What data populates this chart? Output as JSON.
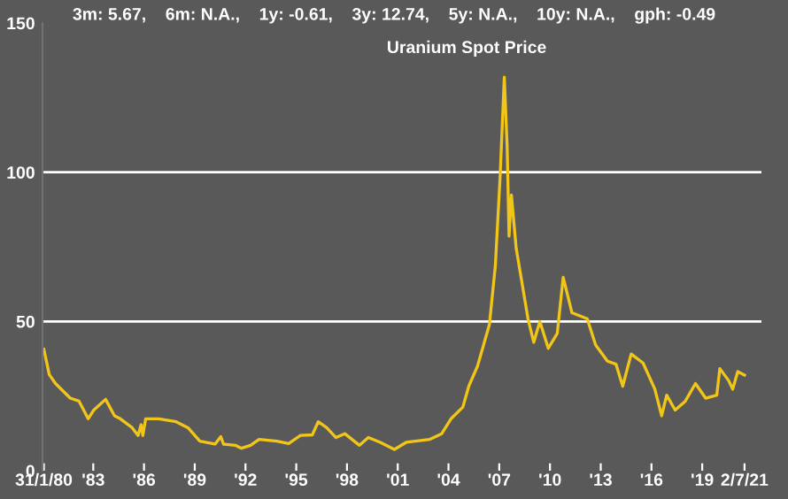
{
  "chart_data": {
    "type": "line",
    "title": "Uranium Spot Price",
    "subtitle": "3m: 5.67,    6m: N.A.,    1y: -0.61,    3y: 12.74,    5y: N.A.,    10y: N.A.,    gph: -0.49",
    "series": [
      {
        "color": "#f2c618",
        "x": [
          1980.08,
          1980.4,
          1980.77,
          1981.64,
          1982.16,
          1982.7,
          1983.03,
          1983.73,
          1984.26,
          1984.6,
          1985.3,
          1985.65,
          1985.83,
          1985.93,
          1986.1,
          1986.87,
          1987.9,
          1988.6,
          1989.3,
          1990.2,
          1990.54,
          1990.7,
          1991.4,
          1991.76,
          1992.3,
          1992.8,
          1993.86,
          1994.55,
          1995.25,
          1995.95,
          1996.3,
          1996.8,
          1997.35,
          1997.87,
          1998.74,
          1999.26,
          1999.97,
          2000.8,
          2001.5,
          2002.9,
          2003.6,
          2004.15,
          2004.85,
          2005.2,
          2005.72,
          2006.42,
          2006.77,
          2007.05,
          2007.3,
          2007.47,
          2007.58,
          2007.72,
          2008.0,
          2008.35,
          2008.7,
          2009.04,
          2009.4,
          2009.9,
          2010.43,
          2010.78,
          2011.3,
          2012.2,
          2012.7,
          2013.4,
          2013.9,
          2014.3,
          2014.8,
          2015.5,
          2016.2,
          2016.6,
          2016.9,
          2017.4,
          2018.0,
          2018.6,
          2019.2,
          2019.86,
          2020.04,
          2020.56,
          2020.8,
          2021.1,
          2021.5
        ],
        "values": [
          40.7,
          32.2,
          29.2,
          24.3,
          23.3,
          17.4,
          20.3,
          23.9,
          18.4,
          17.4,
          14.4,
          11.8,
          15.4,
          11.8,
          17.4,
          17.4,
          16.4,
          14.4,
          9.9,
          8.9,
          11.4,
          8.9,
          8.5,
          7.5,
          8.5,
          10.5,
          9.9,
          9.1,
          11.8,
          12,
          16.4,
          14.4,
          11.1,
          12.4,
          8.5,
          11.1,
          9.5,
          7.1,
          9.5,
          10.5,
          12.4,
          17.4,
          21.3,
          28.3,
          35.1,
          49,
          68.7,
          98.3,
          131.9,
          108.2,
          78.6,
          92.4,
          74.6,
          62.8,
          50.9,
          43,
          50,
          41,
          46,
          64.8,
          52.9,
          50.9,
          42.1,
          36.7,
          35.7,
          28.3,
          39.1,
          36.1,
          27.3,
          18.4,
          25.3,
          20.3,
          23.3,
          29.2,
          24.3,
          25.3,
          34.2,
          30.2,
          27.3,
          33.2,
          32
        ]
      }
    ],
    "xlim": [
      1980.0,
      2022.5
    ],
    "xticks": [
      {
        "value": 1980.08,
        "label": "31/1/80"
      },
      {
        "value": 1983,
        "label": "'83"
      },
      {
        "value": 1986,
        "label": "'86"
      },
      {
        "value": 1989,
        "label": "'89"
      },
      {
        "value": 1992,
        "label": "'92"
      },
      {
        "value": 1995,
        "label": "'95"
      },
      {
        "value": 1998,
        "label": "'98"
      },
      {
        "value": 2001,
        "label": "'01"
      },
      {
        "value": 2004,
        "label": "'04"
      },
      {
        "value": 2007,
        "label": "'07"
      },
      {
        "value": 2010,
        "label": "'10"
      },
      {
        "value": 2013,
        "label": "'13"
      },
      {
        "value": 2016,
        "label": "'16"
      },
      {
        "value": 2019,
        "label": "'19"
      },
      {
        "value": 2021.5,
        "label": "2/7/21"
      }
    ],
    "ylim": [
      0,
      150
    ],
    "yticks": [
      0,
      50,
      100,
      150
    ],
    "grid": "y",
    "legend": false,
    "line_style": "solid"
  }
}
